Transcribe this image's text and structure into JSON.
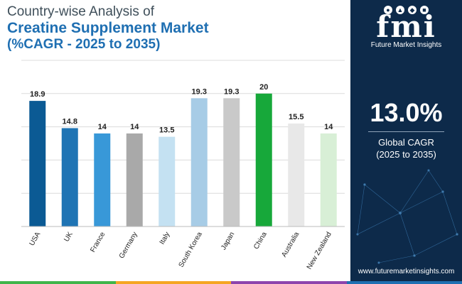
{
  "header": {
    "line1": "Country-wise Analysis of",
    "line2": "Creatine Supplement Market",
    "line3": "(%CAGR - 2025 to 2035)"
  },
  "sidebar": {
    "logo_text": "fmi",
    "logo_subtext": "Future Market Insights",
    "cagr_value": "13.0%",
    "cagr_label": "Global CAGR",
    "cagr_period": "(2025 to 2035)",
    "website": "www.futuremarketinsights.com"
  },
  "colors": {
    "panel_bg": "#0d2a4a",
    "title_blue": "#1f6fb2",
    "strip": [
      "#3fb54a",
      "#f5a623",
      "#8e44ad",
      "#1f6fb2"
    ]
  },
  "chart_data": {
    "type": "bar",
    "title": "Creatine Supplement Market (%CAGR - 2025 to 2035)",
    "xlabel": "",
    "ylabel": "",
    "ylim": [
      0,
      25
    ],
    "grid": true,
    "categories": [
      "USA",
      "UK",
      "France",
      "Germany",
      "Italy",
      "South Korea",
      "Japan",
      "China",
      "Australia",
      "New Zealand"
    ],
    "values": [
      18.9,
      14.8,
      14,
      14,
      13.5,
      19.3,
      19.3,
      20,
      15.5,
      14
    ],
    "value_labels": [
      "18.9",
      "14.8",
      "14",
      "14",
      "13.5",
      "19.3",
      "19.3",
      "20",
      "15.5",
      "14"
    ],
    "bar_colors": [
      "#0b5a94",
      "#1f74b4",
      "#3898d8",
      "#a9a9a9",
      "#c4e1f2",
      "#a7cce6",
      "#c9c9c9",
      "#17a83a",
      "#e8e8e8",
      "#d8efd6"
    ]
  }
}
